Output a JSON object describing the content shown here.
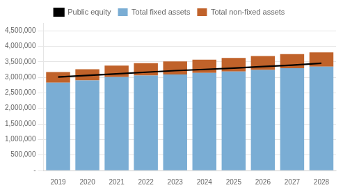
{
  "chart_data": {
    "type": "bar",
    "stacked": true,
    "grid": true,
    "legend": "top",
    "categories": [
      "2019",
      "2020",
      "2021",
      "2022",
      "2023",
      "2024",
      "2025",
      "2026",
      "2027",
      "2028"
    ],
    "series": [
      {
        "name": "Total fixed assets",
        "type": "bar",
        "color": "#7aadd4",
        "values": [
          2830000,
          2900000,
          3010000,
          3060000,
          3090000,
          3140000,
          3190000,
          3240000,
          3295000,
          3345000
        ]
      },
      {
        "name": "Total non-fixed assets",
        "type": "bar",
        "color": "#C0622A",
        "values": [
          340000,
          360000,
          365000,
          395000,
          420000,
          430000,
          435000,
          445000,
          455000,
          460000
        ]
      },
      {
        "name": "Public equity",
        "type": "line",
        "color": "#000000",
        "values": [
          3010000,
          3060000,
          3110000,
          3165000,
          3215000,
          3255000,
          3295000,
          3345000,
          3390000,
          3455000
        ]
      }
    ],
    "ylim": [
      0,
      4750000
    ],
    "yticks": [
      {
        "value": 0,
        "label": "-"
      },
      {
        "value": 500000,
        "label": "500,000"
      },
      {
        "value": 1000000,
        "label": "1,000,000"
      },
      {
        "value": 1500000,
        "label": "1,500,000"
      },
      {
        "value": 2000000,
        "label": "2,000,000"
      },
      {
        "value": 2500000,
        "label": "2,500,000"
      },
      {
        "value": 3000000,
        "label": "3,000,000"
      },
      {
        "value": 3500000,
        "label": "3,500,000"
      },
      {
        "value": 4000000,
        "label": "4,000,000"
      },
      {
        "value": 4500000,
        "label": "4,500,000"
      }
    ]
  }
}
